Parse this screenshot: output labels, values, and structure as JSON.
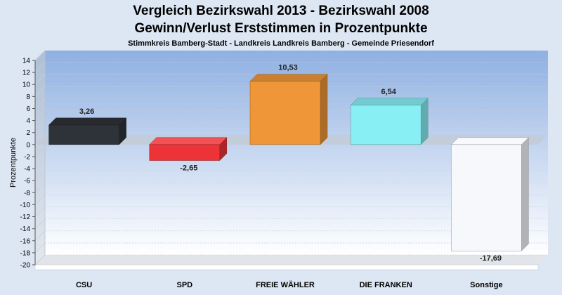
{
  "chart_data": {
    "type": "bar",
    "title": "Vergleich Bezirkswahl 2013 - Bezirkswahl 2008",
    "title2": "Gewinn/Verlust Erststimmen in Prozentpunkte",
    "subtitle": "Stimmkreis Bamberg-Stadt - Landkreis Landkreis Bamberg - Gemeinde Priesendorf",
    "ylabel": "Prozentpunkte",
    "xlabel": "",
    "ylim": [
      -20,
      14
    ],
    "yticks": [
      14,
      12,
      10,
      8,
      6,
      4,
      2,
      0,
      -2,
      -4,
      -6,
      -8,
      -10,
      -12,
      -14,
      -16,
      -18,
      -20
    ],
    "categories": [
      "CSU",
      "SPD",
      "FREIE WÄHLER",
      "DIE FRANKEN",
      "Sonstige"
    ],
    "values": [
      3.26,
      -2.65,
      10.53,
      6.54,
      -17.69
    ],
    "value_labels": [
      "3,26",
      "-2,65",
      "10,53",
      "6,54",
      "-17,69"
    ],
    "colors": [
      "#2e3239",
      "#ee3338",
      "#ef9638",
      "#88eff4",
      "#f6f8fc"
    ],
    "grid": true,
    "legend": "none"
  }
}
